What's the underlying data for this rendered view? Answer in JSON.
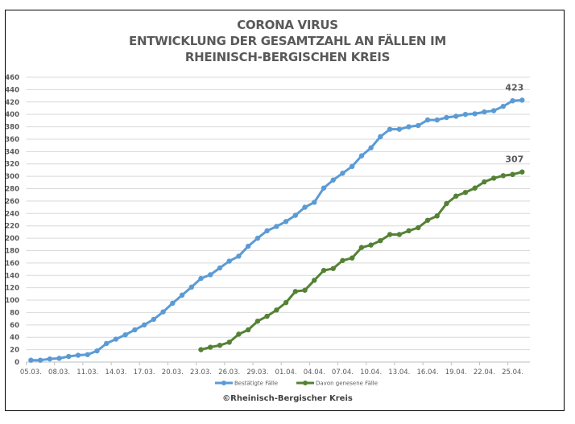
{
  "chart_data": {
    "type": "line",
    "title_lines": [
      "CORONA VIRUS",
      "ENTWICKLUNG DER GESAMTZAHL AN FÄLLEN IM",
      "RHEINISCH-BERGISCHEN KREIS"
    ],
    "xlabel": "",
    "ylabel": "",
    "ylim": [
      0,
      460
    ],
    "ytick_step": 20,
    "yticks": [
      "0",
      "20",
      "40",
      "60",
      "80",
      "100",
      "120",
      "140",
      "160",
      "180",
      "200",
      "220",
      "240",
      "260",
      "280",
      "300",
      "320",
      "340",
      "360",
      "380",
      "400",
      "420",
      "440",
      "460"
    ],
    "grid": true,
    "x": [
      "05.03.",
      "06.03.",
      "07.03.",
      "08.03.",
      "09.03.",
      "10.03.",
      "11.03.",
      "12.03.",
      "13.03.",
      "14.03.",
      "15.03.",
      "16.03.",
      "17.03.",
      "18.03.",
      "19.03.",
      "20.03.",
      "21.03.",
      "22.03.",
      "23.03.",
      "24.03.",
      "25.03.",
      "26.03.",
      "27.03.",
      "28.03.",
      "29.03.",
      "30.03.",
      "31.03.",
      "01.04.",
      "02.04.",
      "03.04.",
      "04.04.",
      "05.04.",
      "06.04.",
      "07.04.",
      "08.04.",
      "09.04.",
      "10.04.",
      "11.04.",
      "12.04.",
      "13.04.",
      "14.04.",
      "15.04.",
      "16.04.",
      "17.04.",
      "18.04.",
      "19.04.",
      "20.04.",
      "21.04.",
      "22.04.",
      "23.04.",
      "24.04.",
      "25.04.",
      "26.04."
    ],
    "xtick_labels": [
      "05.03.",
      "08.03.",
      "11.03.",
      "14.03.",
      "17.03.",
      "20.03.",
      "23.03.",
      "26.03.",
      "29.03.",
      "01.04.",
      "04.04.",
      "07.04.",
      "10.04.",
      "13.04.",
      "16.04.",
      "19.04.",
      "22.04.",
      "25.04."
    ],
    "series": [
      {
        "name": "Bestätigte Fälle",
        "color": "#5B9BD5",
        "values": [
          3,
          3,
          5,
          6,
          9,
          11,
          12,
          18,
          30,
          37,
          44,
          52,
          60,
          69,
          81,
          95,
          108,
          121,
          135,
          141,
          152,
          163,
          171,
          187,
          200,
          212,
          219,
          227,
          237,
          250,
          258,
          281,
          294,
          305,
          316,
          333,
          346,
          364,
          376,
          376,
          380,
          382,
          391,
          391,
          395,
          397,
          400,
          401,
          404,
          406,
          413,
          422,
          423
        ],
        "end_label": "423"
      },
      {
        "name": "Davon genesene Fälle",
        "color": "#548235",
        "values": [
          null,
          null,
          null,
          null,
          null,
          null,
          null,
          null,
          null,
          null,
          null,
          null,
          null,
          null,
          null,
          null,
          null,
          null,
          20,
          24,
          27,
          32,
          45,
          52,
          66,
          74,
          84,
          96,
          114,
          116,
          132,
          148,
          151,
          164,
          168,
          185,
          189,
          196,
          206,
          206,
          212,
          217,
          229,
          236,
          256,
          268,
          274,
          281,
          291,
          297,
          301,
          303,
          307
        ],
        "end_label": "307"
      }
    ],
    "legend_position": "bottom"
  },
  "footer": {
    "copyright": "©Rheinisch-Bergischer Kreis"
  }
}
